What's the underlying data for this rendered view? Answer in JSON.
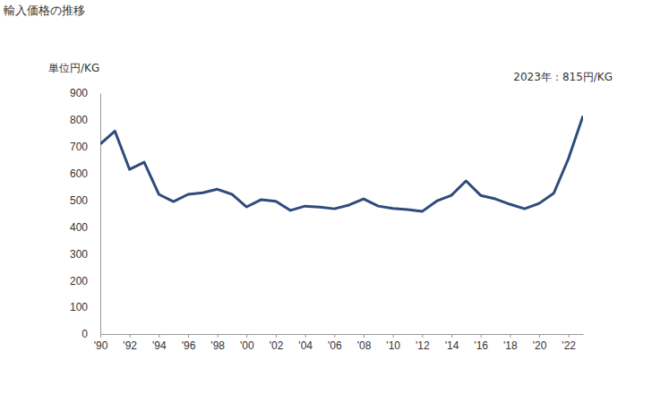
{
  "chart_data": {
    "type": "line",
    "title": "輸入価格の推移",
    "y_label": "単位円/KG",
    "annotation": "2023年：815円/KG",
    "x": [
      1990,
      1991,
      1992,
      1993,
      1994,
      1995,
      1996,
      1997,
      1998,
      1999,
      2000,
      2001,
      2002,
      2003,
      2004,
      2005,
      2006,
      2007,
      2008,
      2009,
      2010,
      2011,
      2012,
      2013,
      2014,
      2015,
      2016,
      2017,
      2018,
      2019,
      2020,
      2021,
      2022,
      2023
    ],
    "values": [
      710,
      758,
      615,
      642,
      522,
      495,
      522,
      528,
      541,
      522,
      475,
      502,
      496,
      462,
      478,
      474,
      468,
      482,
      505,
      478,
      469,
      465,
      458,
      497,
      518,
      572,
      518,
      505,
      485,
      468,
      488,
      526,
      655,
      815
    ],
    "color": "#2f4b7c",
    "xlim": [
      1990,
      2023
    ],
    "xticks": [
      {
        "value": 1990,
        "label": "'90"
      },
      {
        "value": 1992,
        "label": "'92"
      },
      {
        "value": 1994,
        "label": "'94"
      },
      {
        "value": 1996,
        "label": "'96"
      },
      {
        "value": 1998,
        "label": "'98"
      },
      {
        "value": 2000,
        "label": "'00"
      },
      {
        "value": 2002,
        "label": "'02"
      },
      {
        "value": 2004,
        "label": "'04"
      },
      {
        "value": 2006,
        "label": "'06"
      },
      {
        "value": 2008,
        "label": "'08"
      },
      {
        "value": 2010,
        "label": "'10"
      },
      {
        "value": 2012,
        "label": "'12"
      },
      {
        "value": 2014,
        "label": "'14"
      },
      {
        "value": 2016,
        "label": "'16"
      },
      {
        "value": 2018,
        "label": "'18"
      },
      {
        "value": 2020,
        "label": "'20"
      },
      {
        "value": 2022,
        "label": "'22"
      }
    ],
    "ylim": [
      0,
      900
    ],
    "yticks": [
      0,
      100,
      200,
      300,
      400,
      500,
      600,
      700,
      800,
      900
    ],
    "grid": false
  }
}
